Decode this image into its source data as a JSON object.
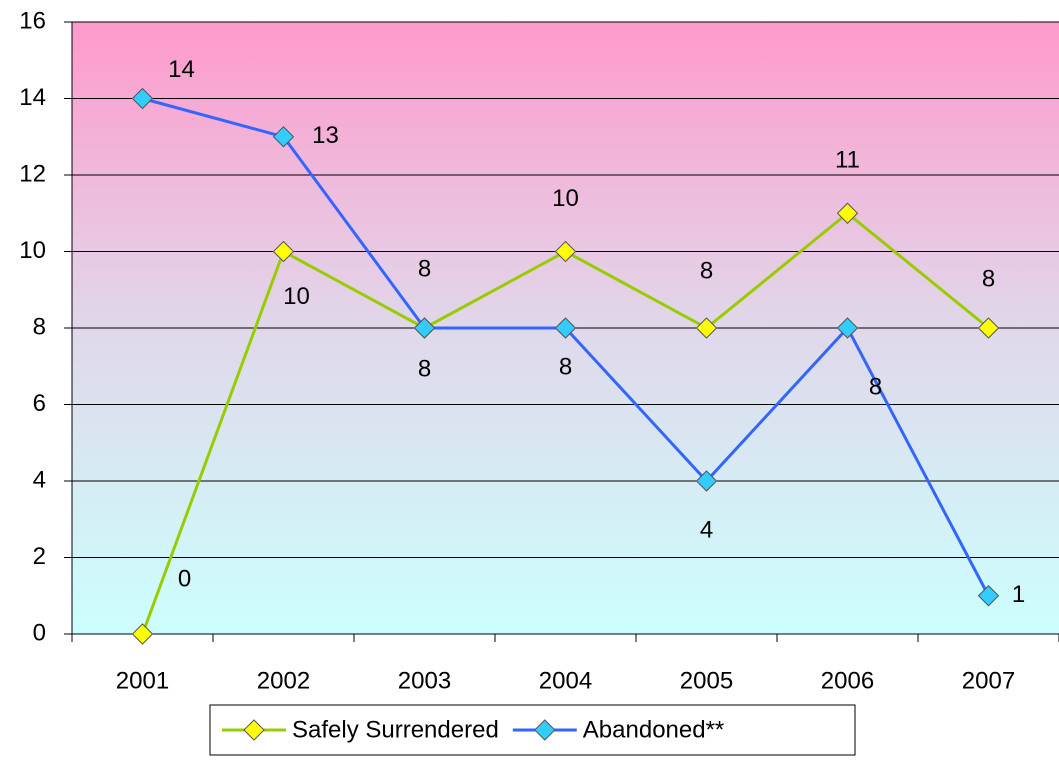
{
  "chart_data": {
    "type": "line",
    "categories": [
      "2001",
      "2002",
      "2003",
      "2004",
      "2005",
      "2006",
      "2007"
    ],
    "series": [
      {
        "name": "Safely Surrendered",
        "color": "#99cc00",
        "marker_color": "#ffff00",
        "values": [
          0,
          10,
          8,
          10,
          8,
          11,
          8
        ]
      },
      {
        "name": "Abandoned**",
        "color": "#3366ff",
        "marker_color": "#33ccff",
        "values": [
          14,
          13,
          8,
          8,
          4,
          8,
          1
        ]
      }
    ],
    "ylim": [
      0,
      16
    ],
    "yticks": [
      0,
      2,
      4,
      6,
      8,
      10,
      12,
      14,
      16
    ],
    "grid": true,
    "legend": "bottom"
  }
}
